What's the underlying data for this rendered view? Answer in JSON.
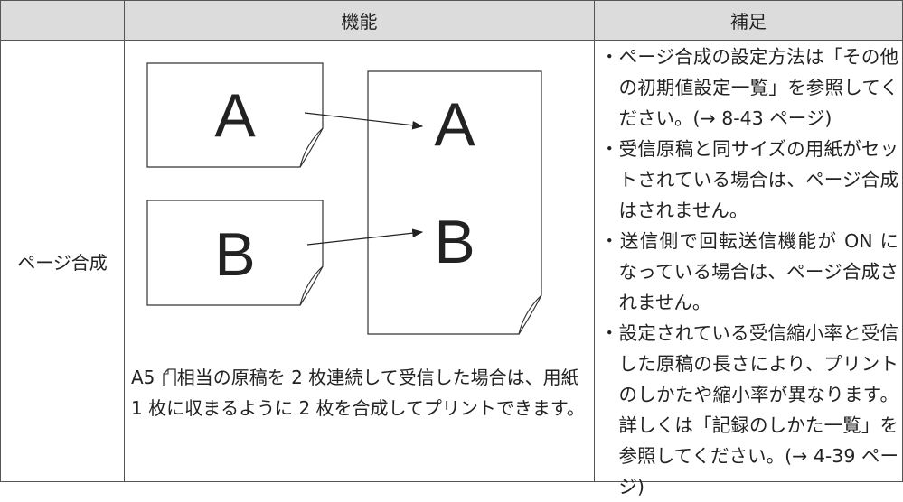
{
  "table": {
    "header": [
      "機能",
      "補足"
    ],
    "rows": [
      {
        "label": "ページ合成",
        "diagram": {
          "small_pages": [
            "A",
            "B"
          ],
          "large_page": [
            "A",
            "B"
          ]
        },
        "caption_prefix": "A5",
        "caption": "相当の原稿を 2 枚連続して受信した場合は、用紙 1 枚に収まるように 2 枚を合成してプリントできます。",
        "notes": [
          "・ページ合成の設定方法は「その他の初期値設定一覧」を参照してください。(→ 8-43 ページ)",
          "・受信原稿と同サイズの用紙がセットされている場合は、ページ合成はされません。",
          "・送信側で回転送信機能が ON になっている場合は、ページ合成されません。",
          "・設定されている受信縮小率と受信した原稿の長さにより、プリントのしかたや縮小率が異なります。詳しくは「記録のしかた一覧」を参照してください。(→ 4-39 ページ)"
        ]
      }
    ]
  }
}
